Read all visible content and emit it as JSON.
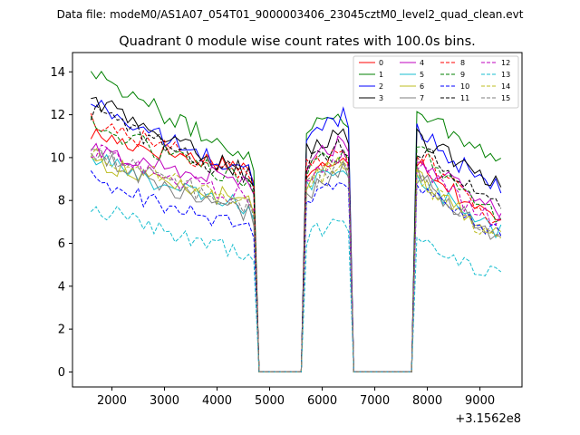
{
  "header": {
    "data_file": "Data file: modeM0/AS1A07_054T01_9000003406_23045cztM0_level2_quad_clean.evt"
  },
  "chart_data": {
    "type": "line",
    "title": "Quadrant 0 module wise count rates with 100.0s bins.",
    "xlabel": "",
    "ylabel": "",
    "x_offset_label": "+3.1562e8",
    "xlim": [
      1250,
      9800
    ],
    "ylim": [
      -0.7,
      14.9
    ],
    "xticks": [
      2000,
      3000,
      4000,
      5000,
      6000,
      7000,
      8000,
      9000
    ],
    "xtick_labels": [
      "2000",
      "3000",
      "4000",
      "5000",
      "6000",
      "7000",
      "8000",
      "9000"
    ],
    "yticks": [
      0,
      2,
      4,
      6,
      8,
      10,
      12,
      14
    ],
    "ytick_labels": [
      "0",
      "2",
      "4",
      "6",
      "8",
      "10",
      "12",
      "14"
    ],
    "grid": false,
    "legend_position": "top-right",
    "segments": [
      {
        "x_start": 1600,
        "x_end": 4600
      },
      {
        "x_start": 5700,
        "x_end": 6400
      },
      {
        "x_start": 7800,
        "x_end": 9400
      }
    ],
    "gaps": [
      {
        "x_start": 4800,
        "x_end": 5600,
        "value": 0.0
      },
      {
        "x_start": 6600,
        "x_end": 7700,
        "value": 0.0
      }
    ],
    "series": [
      {
        "name": "0",
        "color": "#ff0000",
        "dash": "solid",
        "seg1": [
          11.1,
          9.6
        ],
        "seg2": [
          8.9,
          10.2
        ],
        "seg3": [
          10.0,
          7.0
        ]
      },
      {
        "name": "1",
        "color": "#008000",
        "dash": "solid",
        "seg1": [
          14.2,
          10.2
        ],
        "seg2": [
          11.5,
          12.0
        ],
        "seg3": [
          12.3,
          10.0
        ]
      },
      {
        "name": "2",
        "color": "#0000ff",
        "dash": "solid",
        "seg1": [
          12.6,
          9.4
        ],
        "seg2": [
          10.8,
          12.0
        ],
        "seg3": [
          11.5,
          8.5
        ]
      },
      {
        "name": "3",
        "color": "#000000",
        "dash": "solid",
        "seg1": [
          12.8,
          9.4
        ],
        "seg2": [
          10.3,
          11.2
        ],
        "seg3": [
          11.0,
          8.9
        ]
      },
      {
        "name": "4",
        "color": "#bf00bf",
        "dash": "solid",
        "seg1": [
          10.3,
          9.0
        ],
        "seg2": [
          9.5,
          10.8
        ],
        "seg3": [
          10.1,
          7.5
        ]
      },
      {
        "name": "5",
        "color": "#17becf",
        "dash": "solid",
        "seg1": [
          10.0,
          7.7
        ],
        "seg2": [
          8.7,
          9.6
        ],
        "seg3": [
          9.3,
          6.5
        ]
      },
      {
        "name": "6",
        "color": "#bcbd22",
        "dash": "solid",
        "seg1": [
          9.9,
          8.0
        ],
        "seg2": [
          8.8,
          9.9
        ],
        "seg3": [
          9.3,
          6.3
        ]
      },
      {
        "name": "7",
        "color": "#7f7f7f",
        "dash": "solid",
        "seg1": [
          10.2,
          7.4
        ],
        "seg2": [
          8.3,
          9.5
        ],
        "seg3": [
          9.2,
          6.2
        ]
      },
      {
        "name": "8",
        "color": "#ff0000",
        "dash": "dashed",
        "seg1": [
          11.8,
          9.4
        ],
        "seg2": [
          9.5,
          10.2
        ],
        "seg3": [
          10.3,
          7.1
        ]
      },
      {
        "name": "9",
        "color": "#008000",
        "dash": "dashed",
        "seg1": [
          11.6,
          9.0
        ],
        "seg2": [
          9.2,
          10.4
        ],
        "seg3": [
          10.5,
          7.3
        ]
      },
      {
        "name": "10",
        "color": "#0000ff",
        "dash": "dashed",
        "seg1": [
          9.0,
          6.8
        ],
        "seg2": [
          7.7,
          9.0
        ],
        "seg3": [
          8.5,
          6.6
        ]
      },
      {
        "name": "11",
        "color": "#000000",
        "dash": "dashed",
        "seg1": [
          12.2,
          9.2
        ],
        "seg2": [
          9.6,
          10.6
        ],
        "seg3": [
          10.5,
          8.0
        ]
      },
      {
        "name": "12",
        "color": "#bf00bf",
        "dash": "dashed",
        "seg1": [
          10.4,
          8.2
        ],
        "seg2": [
          8.8,
          10.0
        ],
        "seg3": [
          9.6,
          7.0
        ]
      },
      {
        "name": "13",
        "color": "#17becf",
        "dash": "dashed",
        "seg1": [
          7.8,
          5.6
        ],
        "seg2": [
          6.3,
          6.9
        ],
        "seg3": [
          6.2,
          4.4
        ]
      },
      {
        "name": "14",
        "color": "#bcbd22",
        "dash": "dashed",
        "seg1": [
          10.3,
          8.0
        ],
        "seg2": [
          8.6,
          9.9
        ],
        "seg3": [
          9.2,
          6.1
        ]
      },
      {
        "name": "15",
        "color": "#7f7f7f",
        "dash": "dashed",
        "seg1": [
          10.4,
          7.8
        ],
        "seg2": [
          8.6,
          9.9
        ],
        "seg3": [
          9.1,
          6.4
        ]
      }
    ]
  }
}
